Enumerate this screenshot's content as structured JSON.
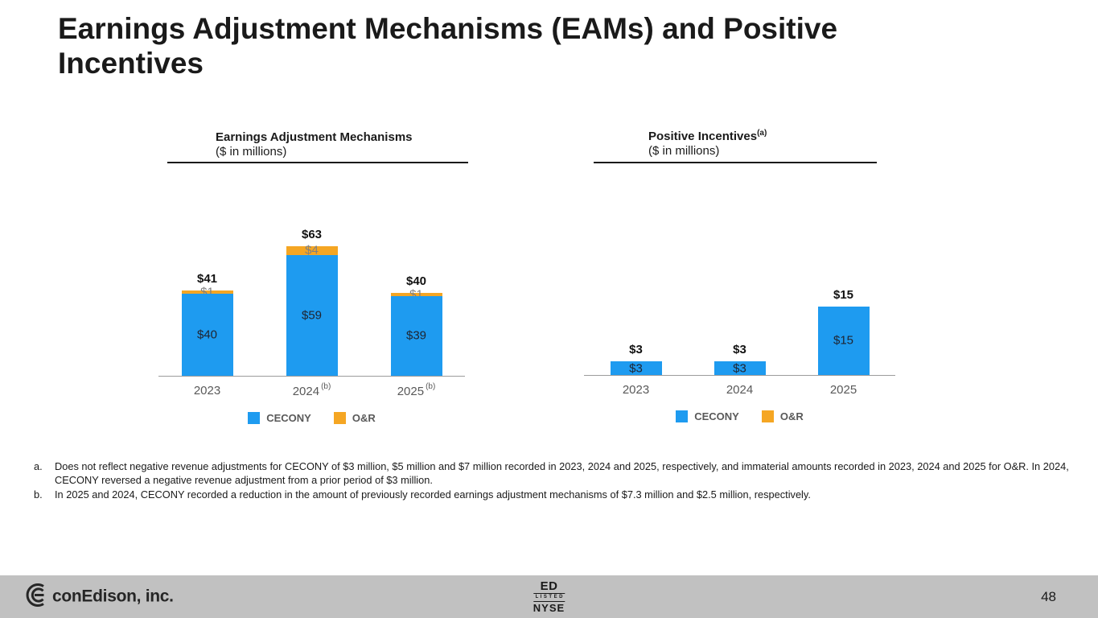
{
  "slide": {
    "title": "Earnings Adjustment Mechanisms (EAMs) and Positive Incentives"
  },
  "chart_data": [
    {
      "type": "bar",
      "stacked": true,
      "title": "Earnings Adjustment Mechanisms",
      "title_sup": "",
      "subtitle": "($ in millions)",
      "categories": [
        "2023",
        "2024",
        "2025"
      ],
      "category_sups": [
        "",
        "(b)",
        "(b)"
      ],
      "series": [
        {
          "name": "CECONY",
          "color": "#1E9BF0",
          "label_color": "#1f2430",
          "values": [
            40,
            59,
            39
          ],
          "seg_labels": [
            "$40",
            "$59",
            "$39"
          ]
        },
        {
          "name": "O&R",
          "color": "#F5A623",
          "label_color": "#808080",
          "values": [
            1,
            4,
            1
          ],
          "seg_labels": [
            "$1",
            "$4",
            "$1"
          ]
        }
      ],
      "totals": [
        "$41",
        "$63",
        "$40"
      ],
      "ylim": [
        0,
        70
      ],
      "legend_position": "bottom",
      "grid": false
    },
    {
      "type": "bar",
      "stacked": true,
      "title": "Positive Incentives",
      "title_sup": "(a)",
      "subtitle": "($ in millions)",
      "categories": [
        "2023",
        "2024",
        "2025"
      ],
      "category_sups": [
        "",
        "",
        ""
      ],
      "series": [
        {
          "name": "CECONY",
          "color": "#1E9BF0",
          "label_color": "#1f2430",
          "values": [
            3,
            3,
            15
          ],
          "seg_labels": [
            "$3",
            "$3",
            "$15"
          ]
        },
        {
          "name": "O&R",
          "color": "#F5A623",
          "label_color": "#808080",
          "values": [
            0,
            0,
            0
          ],
          "seg_labels": [
            "",
            "",
            ""
          ]
        }
      ],
      "totals": [
        "$3",
        "$3",
        "$15"
      ],
      "ylim": [
        0,
        18
      ],
      "legend_position": "bottom",
      "grid": false
    }
  ],
  "footnotes": [
    {
      "marker": "a.",
      "text": "Does not reflect negative revenue adjustments for CECONY of $3 million, $5 million and $7 million recorded in 2023, 2024 and 2025, respectively, and immaterial amounts recorded in 2023, 2024 and 2025 for O&R. In 2024, CECONY reversed a negative revenue adjustment from a prior period of $3 million."
    },
    {
      "marker": "b.",
      "text": "In 2025 and 2024, CECONY recorded a reduction in the amount of previously recorded earnings adjustment mechanisms of $7.3 million and $2.5 million, respectively."
    }
  ],
  "footer": {
    "company": "conEdison, inc.",
    "nyse": {
      "ticker": "ED",
      "listed": "LISTED",
      "exchange": "NYSE"
    },
    "page": "48"
  },
  "colors": {
    "cecony_blue": "#1E9BF0",
    "or_orange": "#F5A623",
    "footer_bg": "#C1C1C1",
    "axis_gray": "#9C9C9C",
    "text_gray": "#595959"
  }
}
